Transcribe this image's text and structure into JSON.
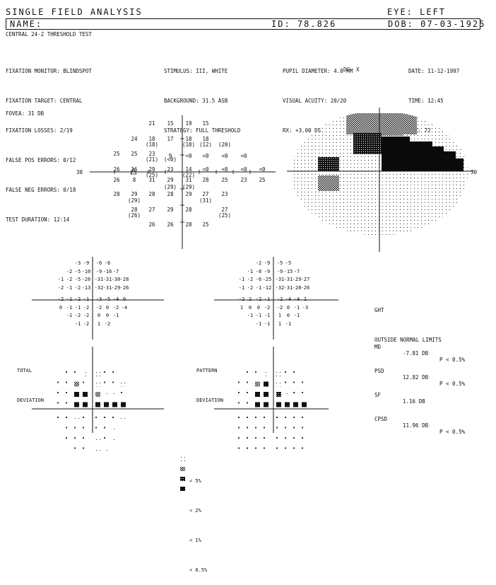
{
  "header": {
    "title": "SINGLE FIELD ANALYSIS",
    "eye": "EYE: LEFT",
    "name_label": "NAME:",
    "id": "ID: 78.826",
    "dob": "DOB: 07-03-1925",
    "test": "CENTRAL 24-2 THRESHOLD TEST"
  },
  "params_left": [
    "FIXATION MONITOR: BLINDSPOT",
    "FIXATION TARGET: CENTRAL",
    "FIXATION LOSSES: 2/19",
    "FALSE POS ERRORS: 0/12",
    "FALSE NEG ERRORS: 0/18",
    "TEST DURATION: 12:14"
  ],
  "params_mid": [
    "STIMULUS: III, WHITE",
    "BACKGROUND: 31.5 ASB",
    "STRATEGY: FULL THRESHOLD"
  ],
  "params_right1": [
    "PUPIL DIAMETER: 4.0 MM",
    "VISUAL ACUITY: 20/20",
    "RX: +3.00 DS"
  ],
  "rx_extra": "DC  X",
  "params_right2": [
    "DATE: 11-12-1997",
    "TIME: 12:45",
    "AGE: 72"
  ],
  "fovea": "FOVEA: 31 DB",
  "axis_30": "30",
  "threshold_values": [
    "21",
    "15",
    "19",
    "15",
    "24",
    "18",
    "17",
    "18",
    "18",
    "(18)",
    "(18)",
    "(12)",
    "(20)",
    "25",
    "25",
    "23",
    "9",
    "<0",
    "<0",
    "<0",
    "<0",
    "(21)",
    "(<0)",
    "26",
    "16",
    "29",
    "23",
    "14",
    "<0",
    "<0",
    "<0",
    "<0",
    "(25)",
    "(22)",
    "26",
    "8",
    "31",
    "29",
    "31",
    "28",
    "25",
    "23",
    "25",
    "(29)",
    "(29)",
    "28",
    "29",
    "28",
    "28",
    "29",
    "27",
    "23",
    "(29)",
    "(31)",
    "28",
    "27",
    "29",
    "28",
    "27",
    "(26)",
    "(25)",
    "26",
    "26",
    "28",
    "25"
  ],
  "total_dev_values": [
    "-3",
    "-9",
    "-6",
    "-6",
    "-2",
    "-5",
    "-10",
    "-9",
    "-16",
    "-7",
    "-1",
    "-2",
    "-5",
    "-26",
    "-31",
    "-31",
    "-30",
    "-28",
    "-2",
    "-1",
    "-2",
    "-13",
    "-32",
    "-31",
    "-29",
    "-26",
    "-2",
    "-1",
    "-2",
    "-1",
    "-3",
    "-5",
    "-4",
    "0",
    "0",
    "-1",
    "-1",
    "-2",
    "-2",
    "0",
    "-2",
    "-4",
    "-1",
    "-2",
    "-2",
    "0",
    "0",
    "-1",
    "-1",
    "-2",
    "1",
    "-2"
  ],
  "pattern_dev_values": [
    "-2",
    "-9",
    "-5",
    "-5",
    "-1",
    "-8",
    "-9",
    "-9",
    "-15",
    "-7",
    "-1",
    "-2",
    "-6",
    "-25",
    "-31",
    "-31",
    "-29",
    "-27",
    "-1",
    "-2",
    "-1",
    "-12",
    "-32",
    "-31",
    "-28",
    "-26",
    "-2",
    "2",
    "-2",
    "-1",
    "-2",
    "-4",
    "-4",
    "1",
    "1",
    "0",
    "0",
    "-2",
    "-2",
    "0",
    "-1",
    "-3",
    "-1",
    "-1",
    "-1",
    "1",
    "0",
    "-1",
    "-1",
    "-1",
    "1",
    "-1"
  ],
  "total_label": [
    "TOTAL",
    "DEVIATION"
  ],
  "pattern_label": [
    "PATTERN",
    "DEVIATION"
  ],
  "ght": [
    "GHT",
    "OUTSIDE NORMAL LIMITS"
  ],
  "indices": [
    {
      "name": "MD",
      "value": "-7.81 DB",
      "p": "P < 0.5%"
    },
    {
      "name": "PSD",
      "value": "12.82 DB",
      "p": "P < 0.5%"
    },
    {
      "name": "SF",
      "value": "1.16 DB",
      "p": ""
    },
    {
      "name": "CPSD",
      "value": "11.96 DB",
      "p": "P < 0.5%"
    }
  ],
  "legend": [
    {
      "label": "< 5%",
      "symbol": "dots"
    },
    {
      "label": "< 2%",
      "symbol": "checker"
    },
    {
      "label": "< 1%",
      "symbol": "dense"
    },
    {
      "label": "< 0.5%",
      "symbol": "black"
    }
  ]
}
